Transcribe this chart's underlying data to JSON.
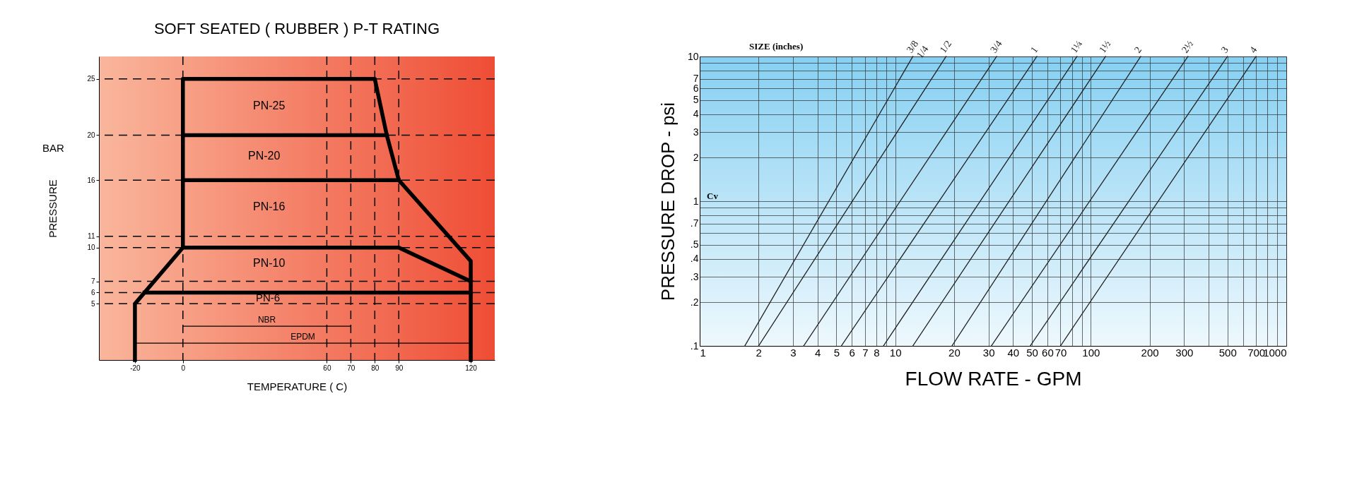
{
  "chart_data": [
    {
      "type": "line",
      "title": "SOFT SEATED  ( RUBBER )  P-T RATING",
      "xlabel": "TEMPERATURE  ( C)",
      "ylabel": "PRESSURE",
      "line_style": "solid",
      "xlim": [
        -35,
        130
      ],
      "ylim": [
        0,
        27
      ],
      "xticks": [
        -20,
        0,
        60,
        70,
        80,
        90,
        120
      ],
      "yticks": [
        5,
        6,
        7,
        10,
        11,
        16,
        20,
        25
      ],
      "ref_lines": [
        {
          "axis": "y",
          "value": 25,
          "line_style": "dashed"
        },
        {
          "axis": "y",
          "value": 20,
          "line_style": "dashed"
        },
        {
          "axis": "y",
          "value": 16,
          "line_style": "dashed"
        },
        {
          "axis": "y",
          "value": 11,
          "line_style": "dashed"
        },
        {
          "axis": "y",
          "value": 10,
          "line_style": "dashed"
        },
        {
          "axis": "y",
          "value": 7,
          "line_style": "dashed"
        },
        {
          "axis": "y",
          "value": 6,
          "line_style": "dashed"
        },
        {
          "axis": "y",
          "value": 5,
          "line_style": "dashed"
        },
        {
          "axis": "x",
          "value": 0,
          "line_style": "dashed"
        },
        {
          "axis": "x",
          "value": 60,
          "line_style": "dashed"
        },
        {
          "axis": "x",
          "value": 70,
          "line_style": "dashed"
        },
        {
          "axis": "x",
          "value": 80,
          "line_style": "dashed"
        },
        {
          "axis": "x",
          "value": 90,
          "line_style": "dashed"
        }
      ],
      "annotations": [
        "BAR",
        "PN-25",
        "PN-20",
        "PN-16",
        "PN-10",
        "PN-6"
      ],
      "series": [
        {
          "color": "#000000",
          "x": [
            -20,
            -20,
            0,
            0,
            80,
            85,
            90,
            120,
            120
          ],
          "values": [
            0,
            5,
            10,
            25,
            25,
            20,
            16,
            8.8,
            0
          ]
        },
        {
          "color": "#000000",
          "x": [
            0,
            85
          ],
          "values": [
            20,
            20
          ]
        },
        {
          "color": "#000000",
          "x": [
            0,
            90
          ],
          "values": [
            16,
            16
          ]
        },
        {
          "color": "#000000",
          "x": [
            0,
            90,
            120
          ],
          "values": [
            10,
            10,
            7
          ]
        },
        {
          "color": "#000000",
          "x": [
            -16,
            120
          ],
          "values": [
            6,
            6
          ]
        },
        {
          "name": "NBR",
          "color": "#000000",
          "x": [
            0,
            70
          ],
          "values": [
            3,
            3
          ]
        },
        {
          "name": "EPDM",
          "color": "#000000",
          "x": [
            -20,
            120
          ],
          "values": [
            1.5,
            1.5
          ]
        }
      ]
    },
    {
      "type": "line",
      "xlabel": "FLOW RATE - GPM",
      "ylabel": "PRESSURE DROP - psi",
      "log": "xy",
      "grid": true,
      "line_style": "solid",
      "xlim": [
        1,
        1000
      ],
      "ylim": [
        0.1,
        10
      ],
      "xticks": [
        1,
        2,
        3,
        4,
        5,
        6,
        7,
        8,
        {
          "value": 9,
          "label": null
        },
        10,
        20,
        30,
        40,
        50,
        60,
        70,
        {
          "value": 80,
          "label": null
        },
        {
          "value": 90,
          "label": null
        },
        100,
        200,
        300,
        {
          "value": 400,
          "label": null
        },
        500,
        {
          "value": 600,
          "label": null
        },
        700,
        {
          "value": 800,
          "label": null
        },
        {
          "value": 900,
          "label": null
        },
        1000
      ],
      "yticks": [
        {
          "value": 0.1,
          "label": ".1"
        },
        {
          "value": 0.2,
          "label": ".2"
        },
        {
          "value": 0.3,
          "label": ".3"
        },
        {
          "value": 0.4,
          "label": ".4"
        },
        {
          "value": 0.5,
          "label": ".5"
        },
        {
          "value": 0.6,
          "label": null
        },
        {
          "value": 0.7,
          "label": ".7"
        },
        {
          "value": 0.8,
          "label": null
        },
        {
          "value": 0.9,
          "label": null
        },
        1,
        2,
        3,
        4,
        5,
        6,
        7,
        {
          "value": 8,
          "label": null
        },
        {
          "value": 9,
          "label": null
        },
        10
      ],
      "annotations": [
        "SIZE  (inches)",
        "Cv",
        {
          "text": "1/4",
          "x": 12.3,
          "y": 10
        }
      ],
      "series": [
        {
          "name": "3/8",
          "color": "#222222",
          "x": [
            1.7,
            12.3
          ],
          "values": [
            0.1,
            10
          ]
        },
        {
          "name": "1/2",
          "color": "#222222",
          "x": [
            2.0,
            18.2
          ],
          "values": [
            0.1,
            10
          ]
        },
        {
          "name": "3/4",
          "color": "#222222",
          "x": [
            3.4,
            33
          ],
          "values": [
            0.1,
            10
          ]
        },
        {
          "name": "1",
          "color": "#222222",
          "x": [
            5.3,
            53
          ],
          "values": [
            0.1,
            10
          ]
        },
        {
          "name": "1¼",
          "color": "#222222",
          "x": [
            8.7,
            85
          ],
          "values": [
            0.1,
            10
          ]
        },
        {
          "name": "1½",
          "color": "#222222",
          "x": [
            12.3,
            119
          ],
          "values": [
            0.1,
            10
          ]
        },
        {
          "name": "2",
          "color": "#222222",
          "x": [
            19.5,
            180
          ],
          "values": [
            0.1,
            10
          ]
        },
        {
          "name": "2½",
          "color": "#222222",
          "x": [
            31,
            314
          ],
          "values": [
            0.1,
            10
          ]
        },
        {
          "name": "3",
          "color": "#222222",
          "x": [
            49,
            500
          ],
          "values": [
            0.1,
            10
          ]
        },
        {
          "name": "4",
          "color": "#222222",
          "x": [
            70,
            700
          ],
          "values": [
            0.1,
            10
          ]
        }
      ]
    }
  ]
}
